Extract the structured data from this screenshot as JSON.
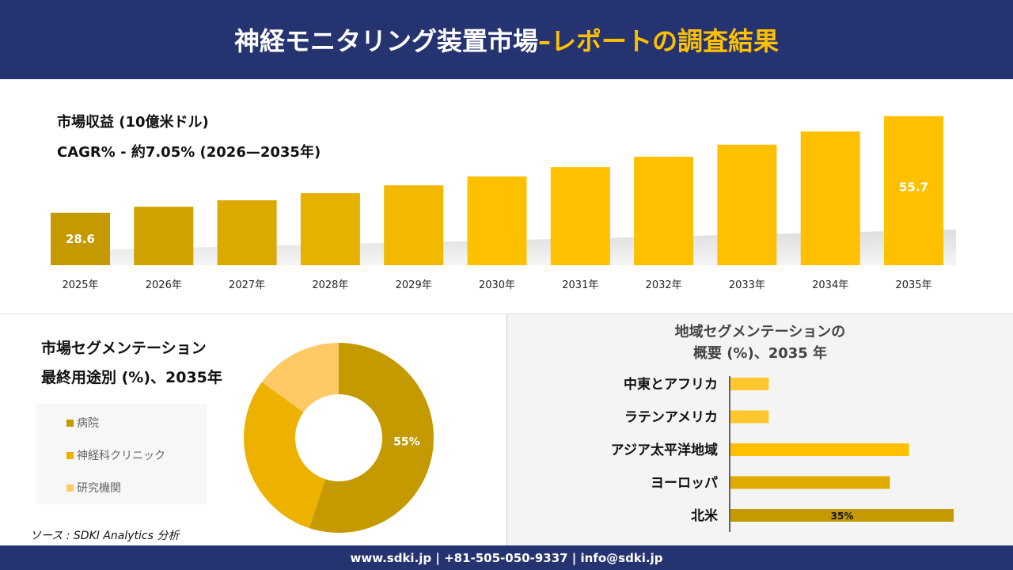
{
  "header": {
    "title_main": "神経モニタリング装置市場",
    "title_accent": "–レポートの調査結果"
  },
  "chart_data": [
    {
      "type": "bar",
      "title": "市場収益 (10億米ドル)",
      "subtitle": "CAGR% - 約7.05% (2026—2035年)",
      "categories": [
        "2025年",
        "2026年",
        "2027年",
        "2028年",
        "2029年",
        "2030年",
        "2031年",
        "2032年",
        "2033年",
        "2034年",
        "2035年"
      ],
      "values": [
        28.6,
        30.3,
        32.1,
        34.1,
        36.3,
        38.8,
        41.4,
        44.3,
        47.7,
        51.4,
        55.7
      ],
      "data_labels": {
        "0": "28.6",
        "10": "55.7"
      },
      "colors": [
        "#C49A00",
        "#FFC000"
      ],
      "grid": false
    },
    {
      "type": "pie",
      "title": "市場セグメンテーション",
      "subtitle": "最終用途別 (%)、2035年",
      "categories": [
        "病院",
        "神経科クリニック",
        "研究機関"
      ],
      "values": [
        55,
        30,
        15
      ],
      "colors": [
        "#C49A00",
        "#EDB200",
        "#FFCA66"
      ],
      "data_labels": {
        "0": "55%"
      },
      "legend": "left"
    },
    {
      "type": "bar",
      "orientation": "horizontal",
      "title": "地域セグメンテーションの",
      "subtitle": "概要 (%)、2035 年",
      "categories": [
        "中東とアフリカ",
        "ラテンアメリカ",
        "アジア太平洋地域",
        "ヨーロッパ",
        "北米"
      ],
      "values": [
        6,
        6,
        28,
        25,
        35
      ],
      "colors": [
        "#FFC72C",
        "#FFC72C",
        "#FFC000",
        "#E0AA00",
        "#C49A00"
      ],
      "data_labels": {
        "4": "35%"
      }
    }
  ],
  "source": "ソース : SDKI Analytics 分析",
  "footer": "www.sdki.jp | +81-505-050-9337 | info@sdki.jp"
}
